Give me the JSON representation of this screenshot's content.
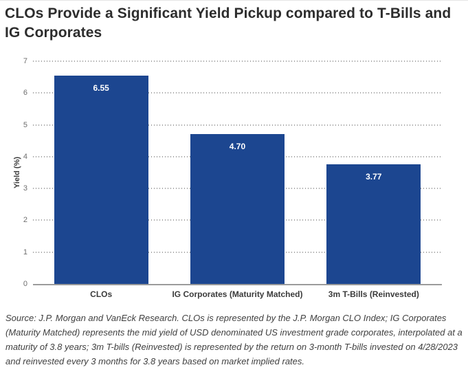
{
  "title": "CLOs Provide a Significant Yield Pickup compared to T-Bills and IG Corporates",
  "chart_data": {
    "type": "bar",
    "categories": [
      "CLOs",
      "IG Corporates (Maturity Matched)",
      "3m T-Bills (Reinvested)"
    ],
    "values": [
      6.55,
      4.7,
      3.77
    ],
    "value_labels": [
      "6.55",
      "4.70",
      "3.77"
    ],
    "title": "CLOs Provide a Significant Yield Pickup compared to T-Bills and IG Corporates",
    "xlabel": "",
    "ylabel": "Yield (%)",
    "ylim": [
      0,
      7
    ],
    "yticks": [
      0,
      1,
      2,
      3,
      4,
      5,
      6,
      7
    ],
    "grid": "horizontal-dotted",
    "legend": "none",
    "bar_color": "#1c4690",
    "value_label_color": "#ffffff"
  },
  "source_note": "Source: J.P. Morgan and VanEck Research. CLOs is represented by the J.P. Morgan CLO Index; IG Corporates (Maturity Matched) represents the mid yield of USD denominated US investment grade corporates, interpolated at a maturity of 3.8 years; 3m T-bills (Reinvested) is represented by the return on 3-month T-bills invested on 4/28/2023 and reinvested every 3 months for 3.8 years based on market implied rates."
}
